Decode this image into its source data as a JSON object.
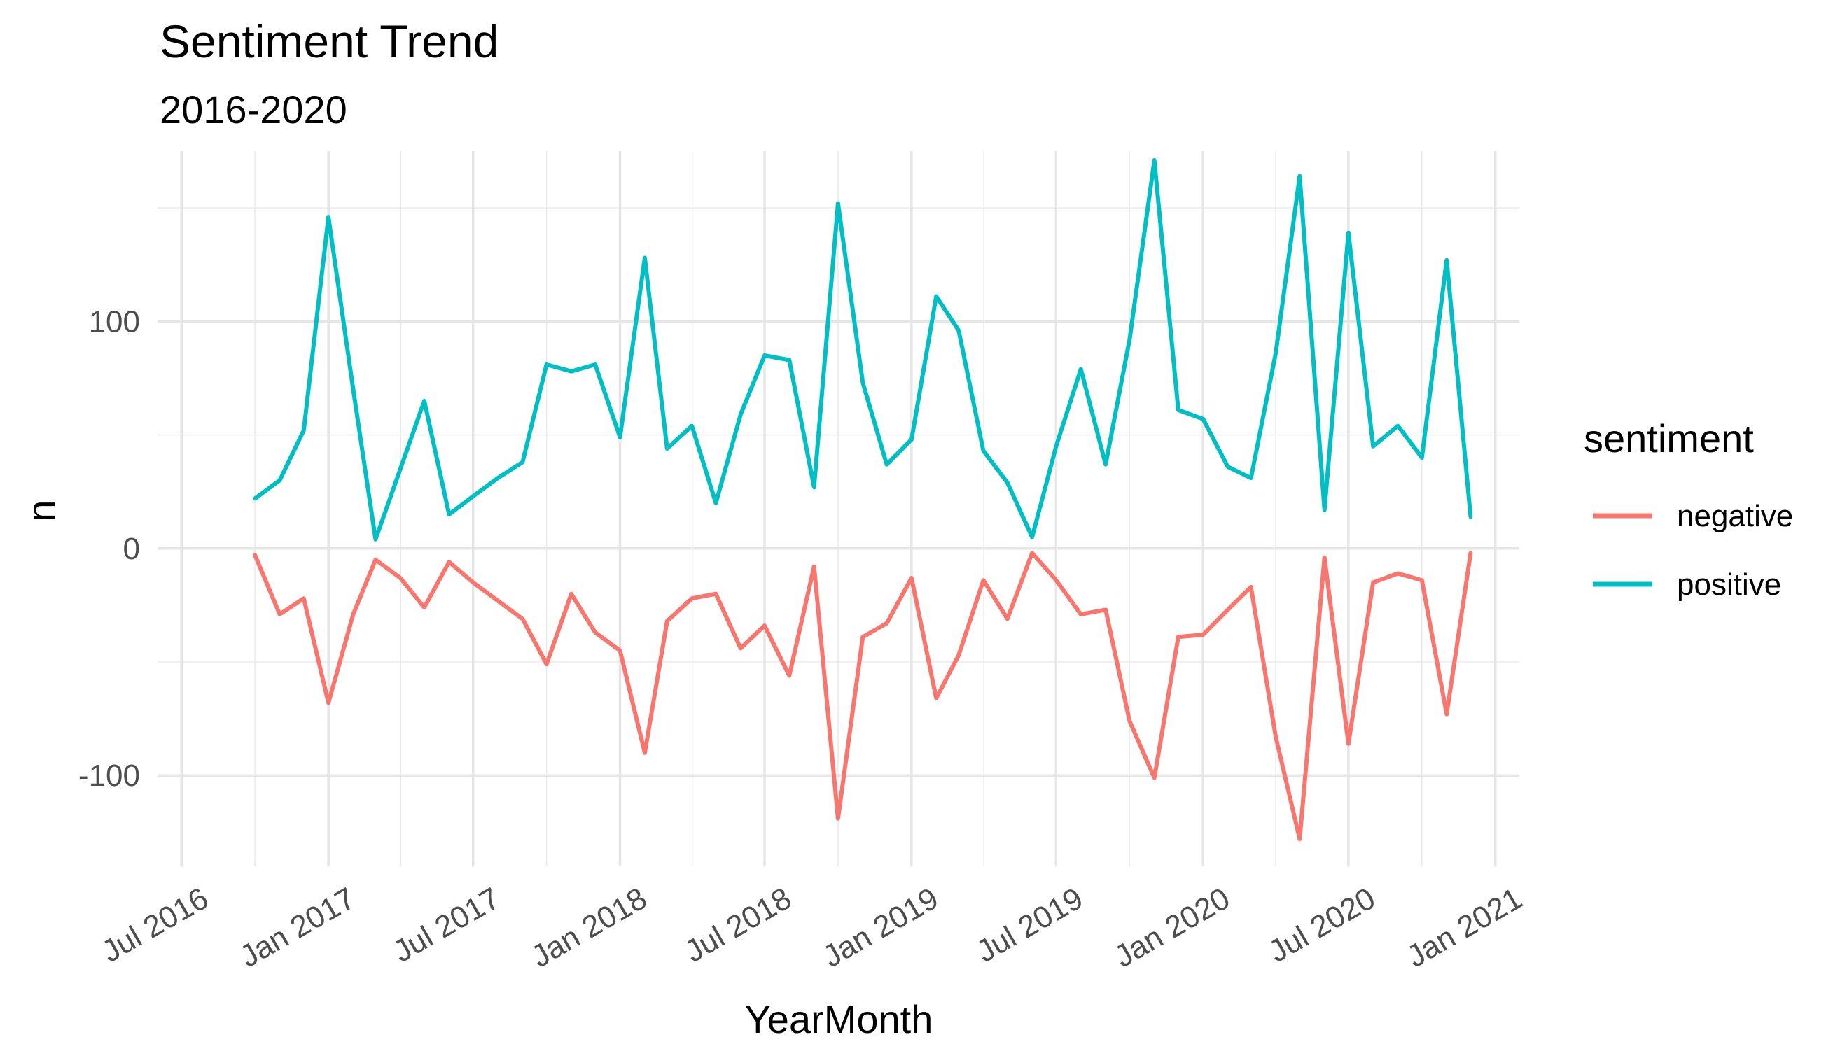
{
  "chart_data": {
    "type": "line",
    "title": "Sentiment Trend",
    "subtitle": "2016-2020",
    "xlabel": "YearMonth",
    "ylabel": "n",
    "xlim": [
      "2016-06-01",
      "2021-01-31"
    ],
    "ylim": [
      -140,
      175
    ],
    "x_ticks": [
      {
        "date": "2016-07-01",
        "label": "Jul 2016"
      },
      {
        "date": "2017-01-01",
        "label": "Jan 2017"
      },
      {
        "date": "2017-07-01",
        "label": "Jul 2017"
      },
      {
        "date": "2018-01-01",
        "label": "Jan 2018"
      },
      {
        "date": "2018-07-01",
        "label": "Jul 2018"
      },
      {
        "date": "2019-01-01",
        "label": "Jan 2019"
      },
      {
        "date": "2019-07-01",
        "label": "Jul 2019"
      },
      {
        "date": "2020-01-01",
        "label": "Jan 2020"
      },
      {
        "date": "2020-07-01",
        "label": "Jul 2020"
      },
      {
        "date": "2021-01-01",
        "label": "Jan 2021"
      }
    ],
    "y_ticks": [
      {
        "value": 100,
        "label": "100"
      },
      {
        "value": 0,
        "label": "0"
      },
      {
        "value": -100,
        "label": "-100"
      }
    ],
    "grid": true,
    "legend_position": "right",
    "legend_title": "sentiment",
    "x": [
      "2016-10-01",
      "2016-11-01",
      "2016-12-01",
      "2017-01-01",
      "2017-02-01",
      "2017-03-01",
      "2017-04-01",
      "2017-05-01",
      "2017-06-01",
      "2017-07-01",
      "2017-08-01",
      "2017-09-01",
      "2017-10-01",
      "2017-11-01",
      "2017-12-01",
      "2018-01-01",
      "2018-02-01",
      "2018-03-01",
      "2018-04-01",
      "2018-05-01",
      "2018-06-01",
      "2018-07-01",
      "2018-08-01",
      "2018-09-01",
      "2018-10-01",
      "2018-11-01",
      "2018-12-01",
      "2019-01-01",
      "2019-02-01",
      "2019-03-01",
      "2019-04-01",
      "2019-05-01",
      "2019-06-01",
      "2019-07-01",
      "2019-08-01",
      "2019-09-01",
      "2019-10-01",
      "2019-11-01",
      "2019-12-01",
      "2020-01-01",
      "2020-02-01",
      "2020-03-01",
      "2020-04-01",
      "2020-05-01",
      "2020-06-01",
      "2020-07-01",
      "2020-08-01",
      "2020-09-01",
      "2020-10-01",
      "2020-11-01",
      "2020-12-01"
    ],
    "series": [
      {
        "name": "negative",
        "color": "#F8766D",
        "values": [
          -3,
          -29,
          -22,
          -68,
          -29,
          -5,
          -13,
          -26,
          -6,
          -15,
          -23,
          -31,
          -51,
          -20,
          -37,
          -45,
          -90,
          -32,
          -22,
          -20,
          -44,
          -34,
          -56,
          -8,
          -119,
          -39,
          -33,
          -13,
          -66,
          -47,
          -14,
          -31,
          -2,
          -14,
          -29,
          -27,
          -76,
          -101,
          -39,
          -38,
          -27,
          -17,
          -83,
          -128,
          -4,
          -86,
          -15,
          -11,
          -14,
          -73,
          -2
        ]
      },
      {
        "name": "positive",
        "color": "#00BFC4",
        "values": [
          22,
          30,
          52,
          146,
          70,
          4,
          35,
          65,
          15,
          23,
          31,
          38,
          81,
          78,
          81,
          49,
          128,
          44,
          54,
          20,
          59,
          85,
          83,
          27,
          152,
          73,
          37,
          48,
          111,
          96,
          43,
          29,
          5,
          45,
          79,
          37,
          92,
          171,
          61,
          57,
          36,
          31,
          86,
          164,
          17,
          139,
          45,
          54,
          40,
          127,
          14
        ]
      }
    ]
  }
}
